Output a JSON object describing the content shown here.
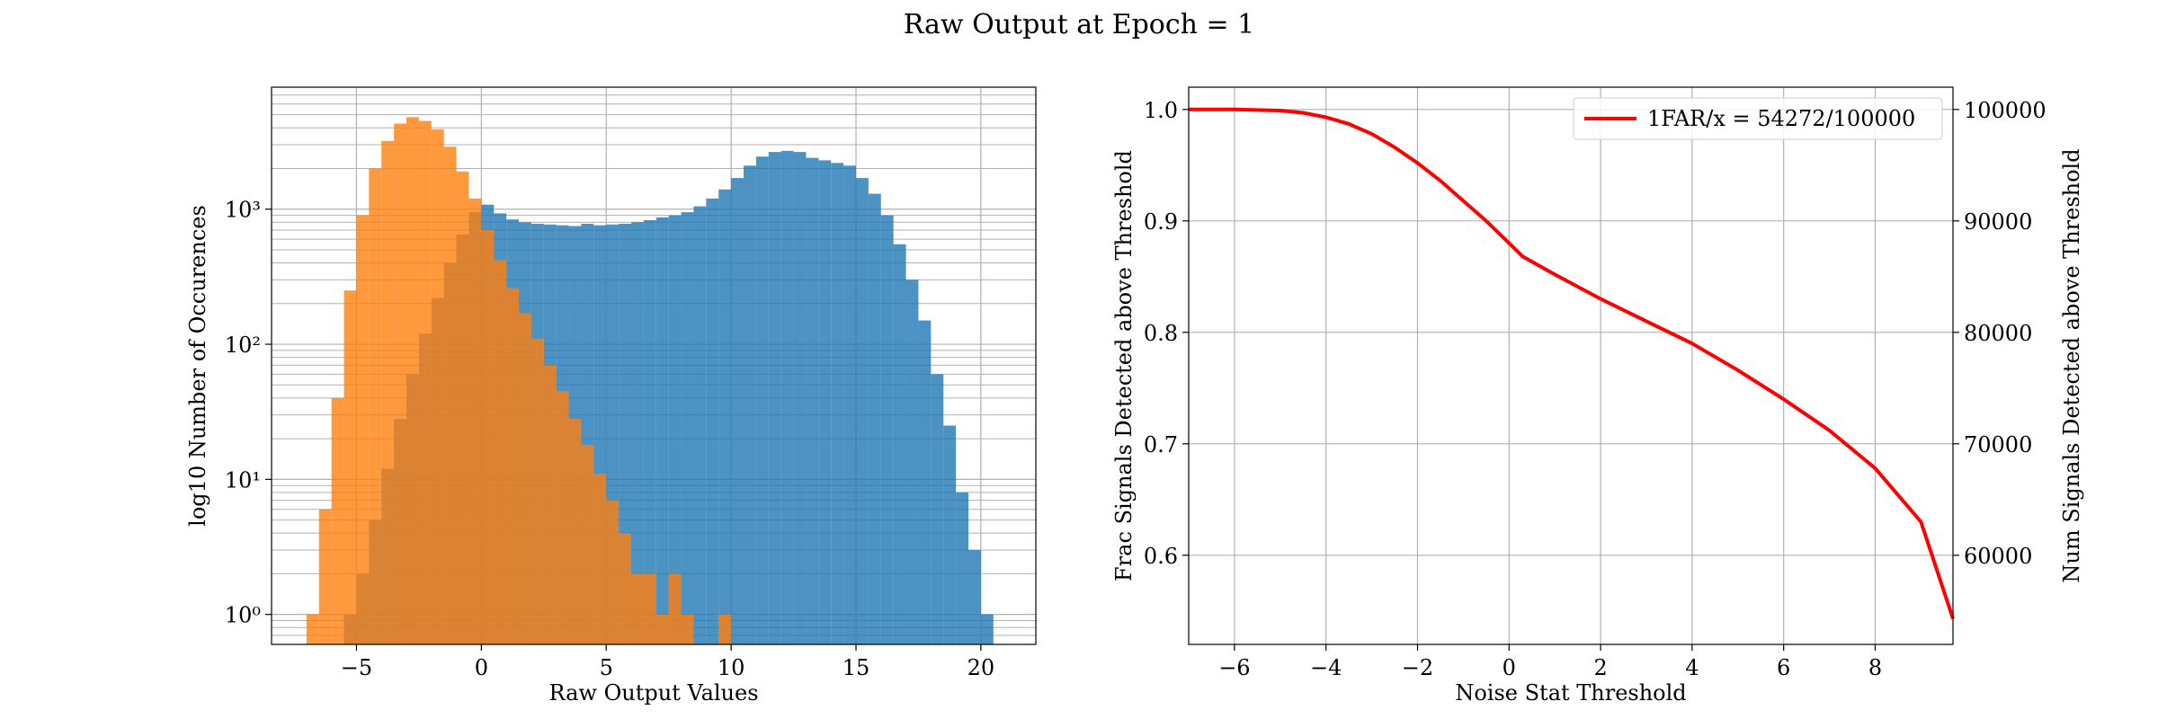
{
  "suptitle": "Raw Output at Epoch = 1",
  "chart_data": [
    {
      "type": "bar",
      "subtype": "histogram",
      "title": "",
      "xlabel": "Raw Output Values",
      "ylabel": "log10 Number of Occurences",
      "xlim": [
        -8.4,
        22.2
      ],
      "ylim": [
        0.6,
        8000
      ],
      "yscale": "log",
      "xticks": [
        -5,
        0,
        5,
        10,
        15,
        20
      ],
      "yticks": [
        {
          "value": 1,
          "label": "10⁰"
        },
        {
          "value": 10,
          "label": "10¹"
        },
        {
          "value": 100,
          "label": "10²"
        },
        {
          "value": 1000,
          "label": "10³"
        }
      ],
      "grid": true,
      "bin_width": 0.5,
      "series": [
        {
          "color": "#1f77b4",
          "bins": [
            {
              "x": -5.5,
              "y": 1
            },
            {
              "x": -5.0,
              "y": 2
            },
            {
              "x": -4.5,
              "y": 5
            },
            {
              "x": -4.0,
              "y": 12
            },
            {
              "x": -3.5,
              "y": 28
            },
            {
              "x": -3.0,
              "y": 60
            },
            {
              "x": -2.5,
              "y": 120
            },
            {
              "x": -2.0,
              "y": 220
            },
            {
              "x": -1.5,
              "y": 400
            },
            {
              "x": -1.0,
              "y": 650
            },
            {
              "x": -0.5,
              "y": 950
            },
            {
              "x": 0.0,
              "y": 1080
            },
            {
              "x": 0.5,
              "y": 930
            },
            {
              "x": 1.0,
              "y": 840
            },
            {
              "x": 1.5,
              "y": 800
            },
            {
              "x": 2.0,
              "y": 780
            },
            {
              "x": 2.5,
              "y": 770
            },
            {
              "x": 3.0,
              "y": 760
            },
            {
              "x": 3.5,
              "y": 750
            },
            {
              "x": 4.0,
              "y": 780
            },
            {
              "x": 4.5,
              "y": 760
            },
            {
              "x": 5.0,
              "y": 770
            },
            {
              "x": 5.5,
              "y": 780
            },
            {
              "x": 6.0,
              "y": 800
            },
            {
              "x": 6.5,
              "y": 830
            },
            {
              "x": 7.0,
              "y": 870
            },
            {
              "x": 7.5,
              "y": 900
            },
            {
              "x": 8.0,
              "y": 950
            },
            {
              "x": 8.5,
              "y": 1050
            },
            {
              "x": 9.0,
              "y": 1200
            },
            {
              "x": 9.5,
              "y": 1400
            },
            {
              "x": 10.0,
              "y": 1700
            },
            {
              "x": 10.5,
              "y": 2100
            },
            {
              "x": 11.0,
              "y": 2450
            },
            {
              "x": 11.5,
              "y": 2650
            },
            {
              "x": 12.0,
              "y": 2700
            },
            {
              "x": 12.5,
              "y": 2650
            },
            {
              "x": 13.0,
              "y": 2400
            },
            {
              "x": 13.5,
              "y": 2300
            },
            {
              "x": 14.0,
              "y": 2200
            },
            {
              "x": 14.5,
              "y": 2100
            },
            {
              "x": 15.0,
              "y": 1700
            },
            {
              "x": 15.5,
              "y": 1300
            },
            {
              "x": 16.0,
              "y": 900
            },
            {
              "x": 16.5,
              "y": 550
            },
            {
              "x": 17.0,
              "y": 300
            },
            {
              "x": 17.5,
              "y": 150
            },
            {
              "x": 18.0,
              "y": 60
            },
            {
              "x": 18.5,
              "y": 25
            },
            {
              "x": 19.0,
              "y": 8
            },
            {
              "x": 19.5,
              "y": 3
            },
            {
              "x": 20.0,
              "y": 1
            }
          ]
        },
        {
          "color": "#ff7f0e",
          "bins": [
            {
              "x": -7.0,
              "y": 1
            },
            {
              "x": -6.5,
              "y": 6
            },
            {
              "x": -6.0,
              "y": 40
            },
            {
              "x": -5.5,
              "y": 250
            },
            {
              "x": -5.0,
              "y": 900
            },
            {
              "x": -4.5,
              "y": 2000
            },
            {
              "x": -4.0,
              "y": 3200
            },
            {
              "x": -3.5,
              "y": 4300
            },
            {
              "x": -3.0,
              "y": 4800
            },
            {
              "x": -2.5,
              "y": 4500
            },
            {
              "x": -2.0,
              "y": 3900
            },
            {
              "x": -1.5,
              "y": 2900
            },
            {
              "x": -1.0,
              "y": 1900
            },
            {
              "x": -0.5,
              "y": 1200
            },
            {
              "x": 0.0,
              "y": 700
            },
            {
              "x": 0.5,
              "y": 420
            },
            {
              "x": 1.0,
              "y": 260
            },
            {
              "x": 1.5,
              "y": 170
            },
            {
              "x": 2.0,
              "y": 110
            },
            {
              "x": 2.5,
              "y": 70
            },
            {
              "x": 3.0,
              "y": 45
            },
            {
              "x": 3.5,
              "y": 28
            },
            {
              "x": 4.0,
              "y": 18
            },
            {
              "x": 4.5,
              "y": 11
            },
            {
              "x": 5.0,
              "y": 7
            },
            {
              "x": 5.5,
              "y": 4
            },
            {
              "x": 6.0,
              "y": 2
            },
            {
              "x": 6.5,
              "y": 2
            },
            {
              "x": 7.0,
              "y": 1
            },
            {
              "x": 7.5,
              "y": 2
            },
            {
              "x": 8.0,
              "y": 1
            },
            {
              "x": 9.5,
              "y": 1
            }
          ]
        }
      ]
    },
    {
      "type": "line",
      "title": "",
      "xlabel": "Noise Stat Threshold",
      "ylabel": "Frac Signals Detected above Threshold",
      "ylabel_right": "Num Signals Detected above Threshold",
      "xlim": [
        -7,
        9.7
      ],
      "ylim": [
        0.52,
        1.02
      ],
      "ylim_right": [
        52000,
        102000
      ],
      "xticks": [
        -6,
        -4,
        -2,
        0,
        2,
        4,
        6,
        8
      ],
      "yticks": [
        0.6,
        0.7,
        0.8,
        0.9,
        1.0
      ],
      "yticks_right": [
        60000,
        70000,
        80000,
        90000,
        100000
      ],
      "grid": true,
      "legend_position": "top-right",
      "series": [
        {
          "name": "1FAR/x = 54272/100000",
          "color": "#ff0000",
          "x": [
            -7,
            -6,
            -5,
            -4.5,
            -4,
            -3.5,
            -3,
            -2.5,
            -2,
            -1.5,
            -1,
            -0.5,
            0,
            0.3,
            1,
            2,
            3,
            4,
            5,
            6,
            7,
            8,
            9,
            9.7
          ],
          "y": [
            1.0,
            1.0,
            0.999,
            0.997,
            0.993,
            0.987,
            0.978,
            0.966,
            0.952,
            0.936,
            0.918,
            0.9,
            0.88,
            0.868,
            0.852,
            0.83,
            0.81,
            0.79,
            0.766,
            0.74,
            0.712,
            0.678,
            0.63,
            0.543
          ]
        }
      ]
    }
  ]
}
